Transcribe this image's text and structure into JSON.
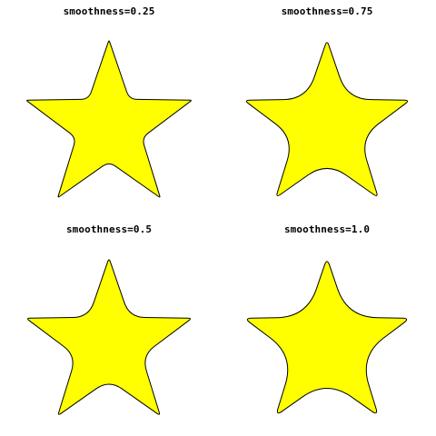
{
  "colors": {
    "background": "#ffffff",
    "star_fill": "#ffff00",
    "star_stroke": "#000000"
  },
  "shape": "star",
  "star_points": 5,
  "panels": [
    {
      "title": "smoothness=0.25",
      "smoothness": 0.25
    },
    {
      "title": "smoothness=0.75",
      "smoothness": 0.75
    },
    {
      "title": "smoothness=0.5",
      "smoothness": 0.5
    },
    {
      "title": "smoothness=1.0",
      "smoothness": 1.0
    }
  ]
}
